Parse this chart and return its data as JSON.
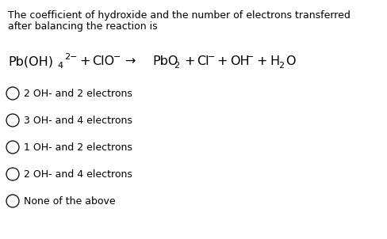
{
  "title_line1": "The coefficient of hydroxide and the number of electrons transferred",
  "title_line2": "after balancing the reaction is",
  "options": [
    "2 OH- and 2 electrons",
    "3 OH- and 4 electrons",
    "1 OH- and 2 electrons",
    "2 OH- and 4 electrons",
    "None of the above"
  ],
  "bg_color": "#ffffff",
  "text_color": "#000000",
  "font_size_title": 9.0,
  "font_size_eq": 11.5,
  "font_size_sub": 8.0,
  "font_size_options": 9.0,
  "fig_width": 4.88,
  "fig_height": 3.02,
  "dpi": 100
}
